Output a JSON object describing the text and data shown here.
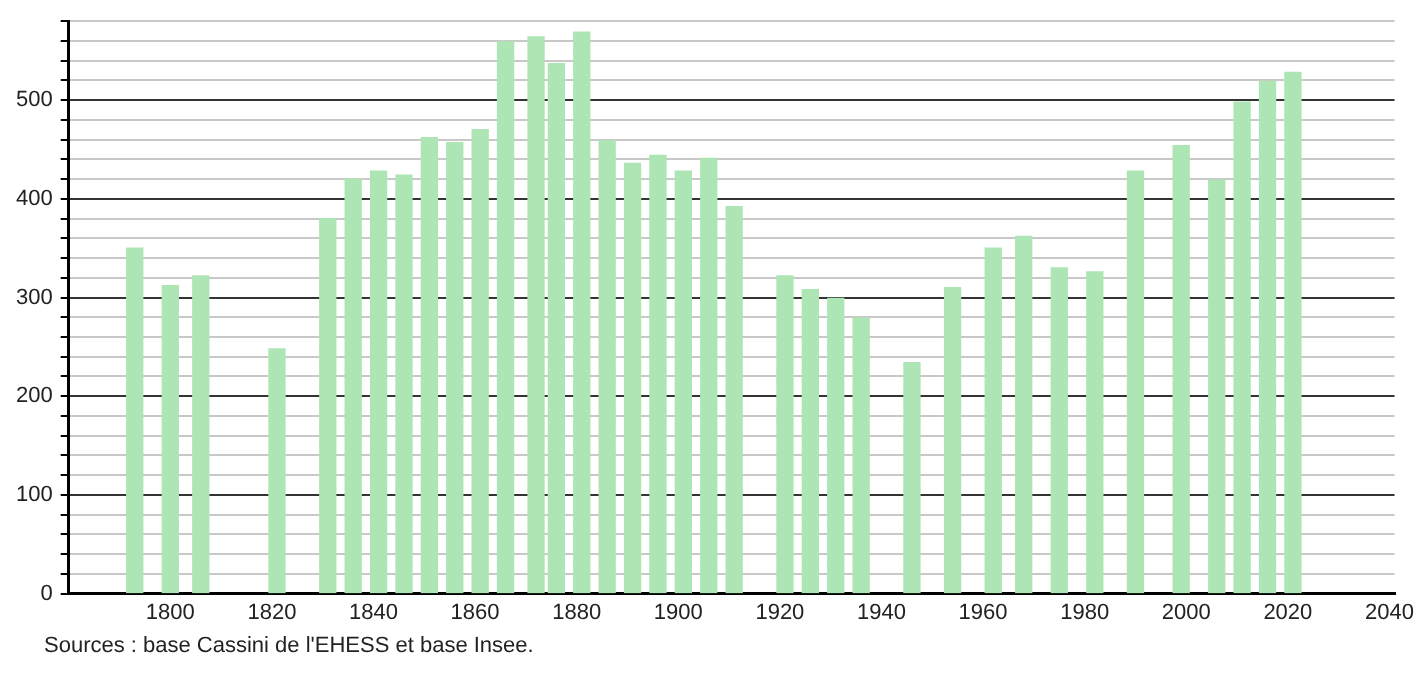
{
  "chart_data": {
    "type": "bar",
    "x": [
      1793,
      1800,
      1806,
      1821,
      1831,
      1836,
      1841,
      1846,
      1851,
      1856,
      1861,
      1866,
      1872,
      1876,
      1881,
      1886,
      1891,
      1896,
      1901,
      1906,
      1911,
      1921,
      1926,
      1931,
      1936,
      1946,
      1954,
      1962,
      1968,
      1975,
      1982,
      1990,
      1999,
      2006,
      2011,
      2016,
      2021
    ],
    "values": [
      350,
      312,
      322,
      248,
      380,
      420,
      428,
      424,
      462,
      457,
      470,
      559,
      564,
      537,
      569,
      459,
      436,
      444,
      428,
      441,
      392,
      322,
      308,
      299,
      279,
      234,
      310,
      350,
      362,
      330,
      326,
      428,
      454,
      419,
      498,
      519,
      528
    ],
    "color": "#ade6b4",
    "xlim": [
      1780,
      2041
    ],
    "xticks": [
      1800,
      1820,
      1840,
      1860,
      1880,
      1900,
      1920,
      1940,
      1960,
      1980,
      2000,
      2020,
      2040
    ],
    "ylim": [
      0,
      580
    ],
    "yticks": [
      0,
      {
        "value": 20,
        "label": null
      },
      {
        "value": 40,
        "label": null
      },
      {
        "value": 60,
        "label": null
      },
      {
        "value": 80,
        "label": null
      },
      100,
      {
        "value": 120,
        "label": null
      },
      {
        "value": 140,
        "label": null
      },
      {
        "value": 160,
        "label": null
      },
      {
        "value": 180,
        "label": null
      },
      200,
      {
        "value": 220,
        "label": null
      },
      {
        "value": 240,
        "label": null
      },
      {
        "value": 260,
        "label": null
      },
      {
        "value": 280,
        "label": null
      },
      300,
      {
        "value": 320,
        "label": null
      },
      {
        "value": 340,
        "label": null
      },
      {
        "value": 360,
        "label": null
      },
      {
        "value": 380,
        "label": null
      },
      400,
      {
        "value": 420,
        "label": null
      },
      {
        "value": 440,
        "label": null
      },
      {
        "value": 460,
        "label": null
      },
      {
        "value": 480,
        "label": null
      },
      500,
      {
        "value": 520,
        "label": null
      },
      {
        "value": 540,
        "label": null
      },
      {
        "value": 560,
        "label": null
      },
      {
        "value": 580,
        "label": null
      }
    ],
    "grid": "y",
    "annotations": [
      "Sources : base Cassini de l'EHESS et base Insee."
    ]
  }
}
